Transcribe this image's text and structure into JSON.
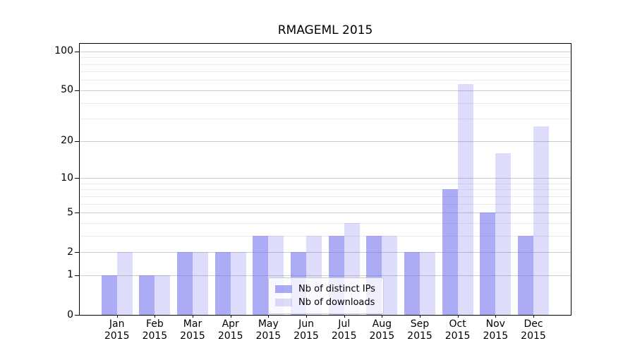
{
  "title": "RMAGEML 2015",
  "legend": {
    "items": [
      {
        "label": "Nb of distinct IPs",
        "color": "rgba(102,102,238,0.55)"
      },
      {
        "label": "Nb of downloads",
        "color": "rgba(102,102,238,0.22)"
      }
    ]
  },
  "colors": {
    "bar_distinct_ips": "rgba(102,102,238,0.55)",
    "bar_downloads": "rgba(102,102,238,0.22)",
    "major_grid": "#cccccc",
    "minor_grid": "#ebebeb",
    "axis": "#000000",
    "background": "#ffffff"
  },
  "chart_data": {
    "type": "bar",
    "title": "RMAGEML 2015",
    "categories": [
      "Jan 2015",
      "Feb 2015",
      "Mar 2015",
      "Apr 2015",
      "May 2015",
      "Jun 2015",
      "Jul 2015",
      "Aug 2015",
      "Sep 2015",
      "Oct 2015",
      "Nov 2015",
      "Dec 2015"
    ],
    "x_months": [
      "Jan",
      "Feb",
      "Mar",
      "Apr",
      "May",
      "Jun",
      "Jul",
      "Aug",
      "Sep",
      "Oct",
      "Nov",
      "Dec"
    ],
    "x_year": "2015",
    "series": [
      {
        "name": "Nb of distinct IPs",
        "color": "rgba(102,102,238,0.55)",
        "values": [
          1,
          1,
          2,
          2,
          3,
          2,
          3,
          3,
          2,
          8,
          5,
          3
        ]
      },
      {
        "name": "Nb of downloads",
        "color": "rgba(102,102,238,0.22)",
        "values": [
          2,
          1,
          2,
          2,
          3,
          3,
          4,
          3,
          2,
          56,
          16,
          26
        ]
      }
    ],
    "xlabel": "",
    "ylabel": "",
    "yscale": "log1p",
    "ylim": [
      0,
      114
    ],
    "yticks": [
      0,
      1,
      2,
      5,
      10,
      20,
      50,
      100
    ],
    "minor_gridlines": [
      3,
      4,
      6,
      7,
      8,
      9,
      30,
      40,
      60,
      70,
      80,
      90
    ],
    "grid": true,
    "legend_position": "lower center"
  }
}
